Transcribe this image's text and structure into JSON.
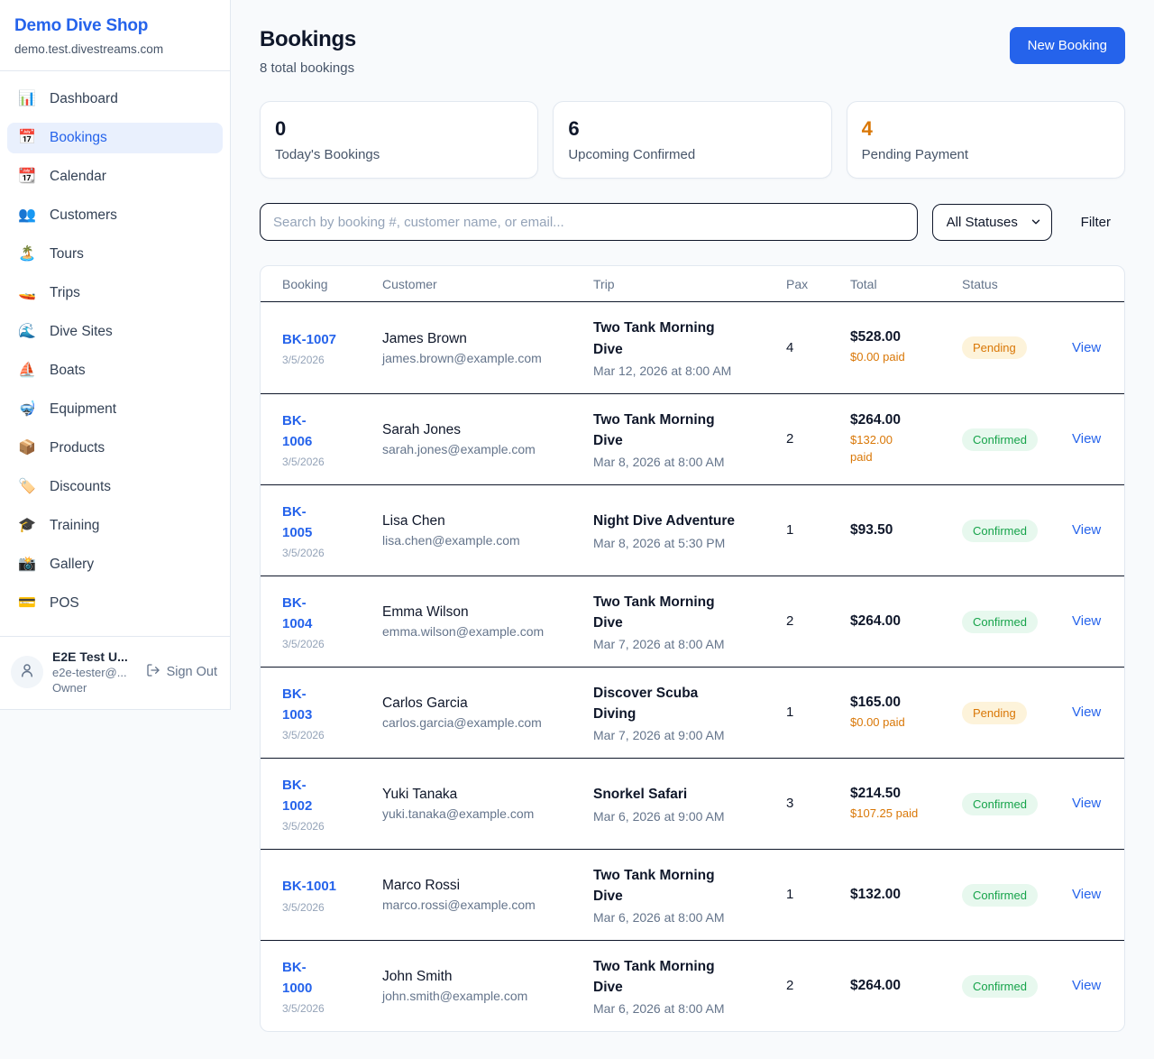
{
  "colors": {
    "accent_blue": "#2563eb",
    "orange": "#d97706",
    "pending_bg": "#fdf3da",
    "pending_text": "#d97706",
    "confirmed_bg": "#e7f8ee",
    "confirmed_text": "#16a34a",
    "row_border": "#0f172a",
    "card_border": "#e2e8f0",
    "page_bg": "#f8fafc"
  },
  "sidebar": {
    "brand": {
      "name": "Demo Dive Shop",
      "domain": "demo.test.divestreams.com"
    },
    "items": [
      {
        "label": "Dashboard",
        "icon": "bar-chart-icon",
        "glyph": "📊",
        "active": false
      },
      {
        "label": "Bookings",
        "icon": "calendar-icon",
        "glyph": "📅",
        "active": true
      },
      {
        "label": "Calendar",
        "icon": "tear-calendar-icon",
        "glyph": "📆",
        "active": false
      },
      {
        "label": "Customers",
        "icon": "people-icon",
        "glyph": "👥",
        "active": false
      },
      {
        "label": "Tours",
        "icon": "island-icon",
        "glyph": "🏝️",
        "active": false
      },
      {
        "label": "Trips",
        "icon": "speedboat-icon",
        "glyph": "🚤",
        "active": false
      },
      {
        "label": "Dive Sites",
        "icon": "wave-icon",
        "glyph": "🌊",
        "active": false
      },
      {
        "label": "Boats",
        "icon": "sailboat-icon",
        "glyph": "⛵",
        "active": false
      },
      {
        "label": "Equipment",
        "icon": "diving-mask-icon",
        "glyph": "🤿",
        "active": false
      },
      {
        "label": "Products",
        "icon": "package-icon",
        "glyph": "📦",
        "active": false
      },
      {
        "label": "Discounts",
        "icon": "label-tag-icon",
        "glyph": "🏷️",
        "active": false
      },
      {
        "label": "Training",
        "icon": "graduation-cap-icon",
        "glyph": "🎓",
        "active": false
      },
      {
        "label": "Gallery",
        "icon": "camera-flash-icon",
        "glyph": "📸",
        "active": false
      },
      {
        "label": "POS",
        "icon": "credit-card-icon",
        "glyph": "💳",
        "active": false
      }
    ],
    "user": {
      "name": "E2E Test U...",
      "email": "e2e-tester@...",
      "role": "Owner",
      "signout_label": "Sign Out"
    }
  },
  "header": {
    "title": "Bookings",
    "subtitle": "8 total bookings",
    "new_booking_label": "New Booking"
  },
  "stats": [
    {
      "value": "0",
      "label": "Today's Bookings",
      "accent": "dark"
    },
    {
      "value": "6",
      "label": "Upcoming Confirmed",
      "accent": "dark"
    },
    {
      "value": "4",
      "label": "Pending Payment",
      "accent": "orange"
    }
  ],
  "filters": {
    "search_placeholder": "Search by booking #, customer name, or email...",
    "status_selected": "All Statuses",
    "filter_label": "Filter"
  },
  "table": {
    "headers": [
      "Booking",
      "Customer",
      "Trip",
      "Pax",
      "Total",
      "Status"
    ],
    "view_label": "View",
    "rows": [
      {
        "id": "BK-1007",
        "id_wrapped": false,
        "date": "3/5/2026",
        "customer_name": "James Brown",
        "customer_email": "james.brown@example.com",
        "trip_name": "Two Tank Morning Dive",
        "trip_name_wrapped": true,
        "trip_datetime": "Mar 12, 2026 at 8:00 AM",
        "pax": "4",
        "total": "$528.00",
        "paid": "$0.00 paid",
        "paid_wrapped": false,
        "status": "Pending"
      },
      {
        "id": "BK-1006",
        "id_wrapped": true,
        "date": "3/5/2026",
        "customer_name": "Sarah Jones",
        "customer_email": "sarah.jones@example.com",
        "trip_name": "Two Tank Morning Dive",
        "trip_name_wrapped": true,
        "trip_datetime": "Mar 8, 2026 at 8:00 AM",
        "pax": "2",
        "total": "$264.00",
        "paid": "$132.00 paid",
        "paid_wrapped": true,
        "status": "Confirmed"
      },
      {
        "id": "BK-1005",
        "id_wrapped": true,
        "date": "3/5/2026",
        "customer_name": "Lisa Chen",
        "customer_email": "lisa.chen@example.com",
        "trip_name": "Night Dive Adventure",
        "trip_name_wrapped": false,
        "trip_datetime": "Mar 8, 2026 at 5:30 PM",
        "pax": "1",
        "total": "$93.50",
        "paid": null,
        "paid_wrapped": false,
        "status": "Confirmed"
      },
      {
        "id": "BK-1004",
        "id_wrapped": true,
        "date": "3/5/2026",
        "customer_name": "Emma Wilson",
        "customer_email": "emma.wilson@example.com",
        "trip_name": "Two Tank Morning Dive",
        "trip_name_wrapped": true,
        "trip_datetime": "Mar 7, 2026 at 8:00 AM",
        "pax": "2",
        "total": "$264.00",
        "paid": null,
        "paid_wrapped": false,
        "status": "Confirmed"
      },
      {
        "id": "BK-1003",
        "id_wrapped": true,
        "date": "3/5/2026",
        "customer_name": "Carlos Garcia",
        "customer_email": "carlos.garcia@example.com",
        "trip_name": "Discover Scuba Diving",
        "trip_name_wrapped": true,
        "trip_datetime": "Mar 7, 2026 at 9:00 AM",
        "pax": "1",
        "total": "$165.00",
        "paid": "$0.00 paid",
        "paid_wrapped": false,
        "status": "Pending"
      },
      {
        "id": "BK-1002",
        "id_wrapped": true,
        "date": "3/5/2026",
        "customer_name": "Yuki Tanaka",
        "customer_email": "yuki.tanaka@example.com",
        "trip_name": "Snorkel Safari",
        "trip_name_wrapped": false,
        "trip_datetime": "Mar 6, 2026 at 9:00 AM",
        "pax": "3",
        "total": "$214.50",
        "paid": "$107.25 paid",
        "paid_wrapped": false,
        "status": "Confirmed"
      },
      {
        "id": "BK-1001",
        "id_wrapped": false,
        "date": "3/5/2026",
        "customer_name": "Marco Rossi",
        "customer_email": "marco.rossi@example.com",
        "trip_name": "Two Tank Morning Dive",
        "trip_name_wrapped": true,
        "trip_datetime": "Mar 6, 2026 at 8:00 AM",
        "pax": "1",
        "total": "$132.00",
        "paid": null,
        "paid_wrapped": false,
        "status": "Confirmed"
      },
      {
        "id": "BK-1000",
        "id_wrapped": true,
        "date": "3/5/2026",
        "customer_name": "John Smith",
        "customer_email": "john.smith@example.com",
        "trip_name": "Two Tank Morning Dive",
        "trip_name_wrapped": true,
        "trip_datetime": "Mar 6, 2026 at 8:00 AM",
        "pax": "2",
        "total": "$264.00",
        "paid": null,
        "paid_wrapped": false,
        "status": "Confirmed"
      }
    ]
  }
}
